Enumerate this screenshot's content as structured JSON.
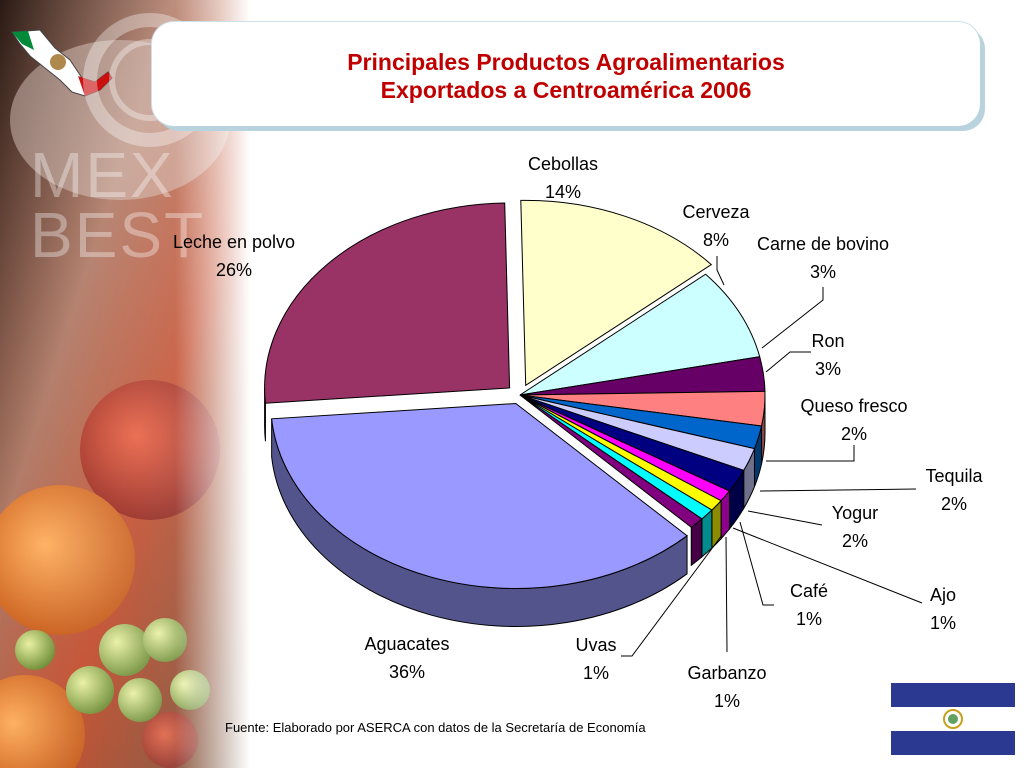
{
  "title": {
    "line1": "Principales Productos Agroalimentarios",
    "line2": "Exportados a Centroamérica 2006"
  },
  "logo_text": "MEX BEST",
  "source": "Fuente: Elaborado por ASERCA con datos de la Secretaría de Economía",
  "colors": {
    "title": "#c00000",
    "title_box_shadow": "#b9d3de"
  },
  "chart_data": {
    "type": "pie",
    "title": "Principales Productos Agroalimentarios Exportados a Centroamérica 2006",
    "slices": [
      {
        "label": "Cebollas",
        "value": 14,
        "pct": "14%",
        "color": "#ffffcc"
      },
      {
        "label": "Cerveza",
        "value": 8,
        "pct": "8%",
        "color": "#ccffff"
      },
      {
        "label": "Carne de bovino",
        "value": 3,
        "pct": "3%",
        "color": "#660066"
      },
      {
        "label": "Ron",
        "value": 3,
        "pct": "3%",
        "color": "#ff8080"
      },
      {
        "label": "Queso  fresco",
        "value": 2,
        "pct": "2%",
        "color": "#0066cc"
      },
      {
        "label": "Tequila",
        "value": 2,
        "pct": "2%",
        "color": "#ccccff"
      },
      {
        "label": "Yogur",
        "value": 2,
        "pct": "2%",
        "color": "#000080"
      },
      {
        "label": "Ajo",
        "value": 1,
        "pct": "1%",
        "color": "#ff00ff"
      },
      {
        "label": "Café",
        "value": 1,
        "pct": "1%",
        "color": "#ffff00"
      },
      {
        "label": "Garbanzo",
        "value": 1,
        "pct": "1%",
        "color": "#00ffff"
      },
      {
        "label": "Uvas",
        "value": 1,
        "pct": "1%",
        "color": "#800080"
      },
      {
        "label": "Aguacates",
        "value": 36,
        "pct": "36%",
        "color": "#9999ff"
      },
      {
        "label": "Leche en polvo",
        "value": 26,
        "pct": "26%",
        "color": "#993366"
      }
    ]
  }
}
